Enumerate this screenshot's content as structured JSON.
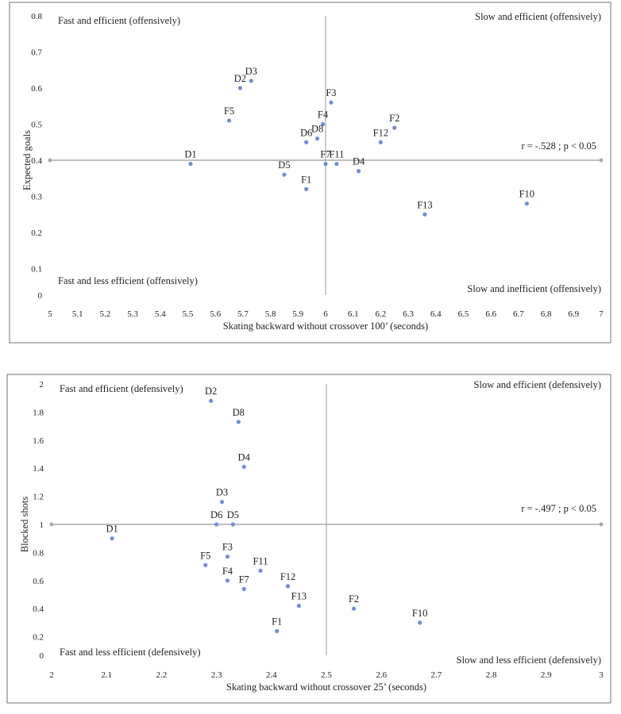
{
  "chart_data": [
    {
      "type": "scatter",
      "xlabel": "Skating backward without crossover 100’ (seconds)",
      "ylabel": "Expected goals",
      "xlim": [
        5,
        7
      ],
      "ylim": [
        0,
        0.8
      ],
      "xticks": [
        "5",
        "5.1",
        "5.2",
        "5.3",
        "5.4",
        "5.5",
        "5.6",
        "5.7",
        "5.8",
        "5.9",
        "6",
        "6.1",
        "6.2",
        "6.3",
        "6.4",
        "6.5",
        "6.6",
        "6.7",
        "6.8",
        "6.9",
        "7"
      ],
      "yticks": [
        "0",
        "0.1",
        "0.2",
        "0.3",
        "0.4",
        "0.5",
        "0.6",
        "0.7",
        "0.8"
      ],
      "grid": false,
      "reference_lines": {
        "x": 6,
        "y": 0.4
      },
      "annotation": "r = -.528 ; p < 0.05",
      "quadrant_labels": {
        "top_left": "Fast and efficient (offensively)",
        "top_right": "Slow and efficient (offensively)",
        "bottom_left": "Fast and less efficient (offensively)",
        "bottom_right": "Slow and inefficient (offensively)"
      },
      "marker_color": "#6f8fd0",
      "points": [
        {
          "label": "D1",
          "x": 5.51,
          "y": 0.39
        },
        {
          "label": "D2",
          "x": 5.69,
          "y": 0.6
        },
        {
          "label": "D3",
          "x": 5.73,
          "y": 0.62
        },
        {
          "label": "F5",
          "x": 5.65,
          "y": 0.51
        },
        {
          "label": "F3",
          "x": 6.02,
          "y": 0.56
        },
        {
          "label": "F4",
          "x": 5.99,
          "y": 0.5
        },
        {
          "label": "D8",
          "x": 5.97,
          "y": 0.46
        },
        {
          "label": "D6",
          "x": 5.93,
          "y": 0.45
        },
        {
          "label": "F7",
          "x": 6.0,
          "y": 0.39
        },
        {
          "label": "F11",
          "x": 6.04,
          "y": 0.39
        },
        {
          "label": "D5",
          "x": 5.85,
          "y": 0.36
        },
        {
          "label": "F1",
          "x": 5.93,
          "y": 0.32
        },
        {
          "label": "D4",
          "x": 6.12,
          "y": 0.37
        },
        {
          "label": "F12",
          "x": 6.2,
          "y": 0.45
        },
        {
          "label": "F2",
          "x": 6.25,
          "y": 0.49
        },
        {
          "label": "F13",
          "x": 6.36,
          "y": 0.25
        },
        {
          "label": "F10",
          "x": 6.73,
          "y": 0.28
        }
      ]
    },
    {
      "type": "scatter",
      "xlabel": "Skating backward without crossover 25’ (seconds)",
      "ylabel": "Blocked shots",
      "xlim": [
        2,
        3
      ],
      "ylim": [
        0,
        2
      ],
      "xticks": [
        "2",
        "2.1",
        "2.2",
        "2.3",
        "2.4",
        "2.5",
        "2.6",
        "2.7",
        "2.8",
        "2.9",
        "3"
      ],
      "yticks": [
        "0",
        "0.2",
        "0.4",
        "0.6",
        "0.8",
        "1",
        "1.2",
        "1.4",
        "1.6",
        "1.8",
        "2"
      ],
      "grid": false,
      "reference_lines": {
        "x": 2.5,
        "y": 1
      },
      "annotation": "r = -.497 ; p < 0.05",
      "quadrant_labels": {
        "top_left": "Fast and efficient (defensively)",
        "top_right": "Slow and efficient (defensively)",
        "bottom_left": "Fast and  less efficient (defensively)",
        "bottom_right": "Slow and less efficient (defensively)"
      },
      "marker_color": "#6f8fd0",
      "points": [
        {
          "label": "D2",
          "x": 2.29,
          "y": 1.88
        },
        {
          "label": "D8",
          "x": 2.34,
          "y": 1.73
        },
        {
          "label": "D4",
          "x": 2.35,
          "y": 1.41
        },
        {
          "label": "D3",
          "x": 2.31,
          "y": 1.16
        },
        {
          "label": "D6",
          "x": 2.3,
          "y": 1.0
        },
        {
          "label": "D5",
          "x": 2.33,
          "y": 1.0
        },
        {
          "label": "D1",
          "x": 2.11,
          "y": 0.9
        },
        {
          "label": "F3",
          "x": 2.32,
          "y": 0.77
        },
        {
          "label": "F5",
          "x": 2.28,
          "y": 0.71
        },
        {
          "label": "F4",
          "x": 2.32,
          "y": 0.6
        },
        {
          "label": "F11",
          "x": 2.38,
          "y": 0.67
        },
        {
          "label": "F7",
          "x": 2.35,
          "y": 0.54
        },
        {
          "label": "F12",
          "x": 2.43,
          "y": 0.56
        },
        {
          "label": "F13",
          "x": 2.45,
          "y": 0.42
        },
        {
          "label": "F1",
          "x": 2.41,
          "y": 0.24
        },
        {
          "label": "F2",
          "x": 2.55,
          "y": 0.4
        },
        {
          "label": "F10",
          "x": 2.67,
          "y": 0.3
        }
      ]
    }
  ]
}
